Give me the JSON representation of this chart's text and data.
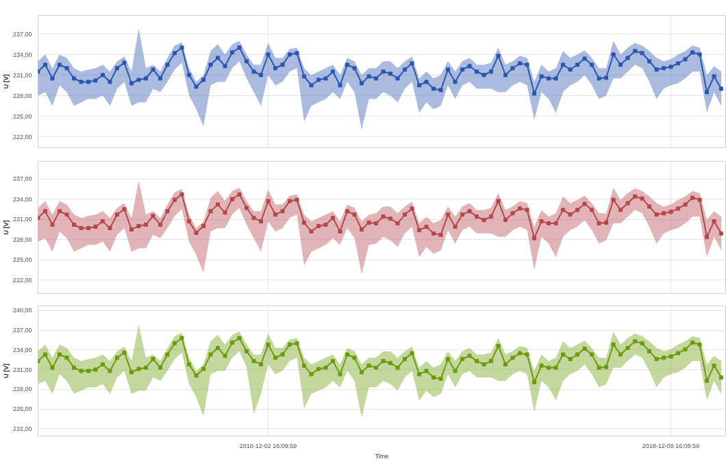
{
  "chart_data": [
    {
      "type": "line",
      "ylabel": "U [V]",
      "tick_labels": "y",
      "grid": true,
      "marker": "square",
      "x": [
        "2018-11-28T16:10",
        "2018-11-28T19:10",
        "2018-11-28T22:10",
        "2018-11-29T01:10",
        "2018-11-29T04:10",
        "2018-11-29T07:10",
        "2018-11-29T10:10",
        "2018-11-29T13:10",
        "2018-11-29T16:10",
        "2018-11-29T19:10",
        "2018-11-29T22:10",
        "2018-11-30T01:10",
        "2018-11-30T04:10",
        "2018-11-30T07:10",
        "2018-11-30T10:10",
        "2018-11-30T13:10",
        "2018-11-30T16:10",
        "2018-11-30T19:10",
        "2018-11-30T22:10",
        "2018-12-01T01:10",
        "2018-12-01T04:10",
        "2018-12-01T07:10",
        "2018-12-01T10:10",
        "2018-12-01T13:10",
        "2018-12-01T16:10",
        "2018-12-01T19:10",
        "2018-12-01T22:10",
        "2018-12-02T01:10",
        "2018-12-02T04:10",
        "2018-12-02T07:10",
        "2018-12-02T10:10",
        "2018-12-02T13:10",
        "2018-12-02T16:10",
        "2018-12-02T19:10",
        "2018-12-02T22:10",
        "2018-12-03T01:10",
        "2018-12-03T04:10",
        "2018-12-03T07:10",
        "2018-12-03T10:10",
        "2018-12-03T13:10",
        "2018-12-03T16:10",
        "2018-12-03T19:10",
        "2018-12-03T22:10",
        "2018-12-04T01:10",
        "2018-12-04T04:10",
        "2018-12-04T07:10",
        "2018-12-04T10:10",
        "2018-12-04T13:10",
        "2018-12-04T16:10",
        "2018-12-04T19:10",
        "2018-12-04T22:10",
        "2018-12-05T01:10",
        "2018-12-05T04:10",
        "2018-12-05T07:10",
        "2018-12-05T10:10",
        "2018-12-05T13:10",
        "2018-12-05T16:10",
        "2018-12-05T19:10",
        "2018-12-05T22:10",
        "2018-12-06T01:10",
        "2018-12-06T04:10",
        "2018-12-06T07:10",
        "2018-12-06T10:10",
        "2018-12-06T13:10",
        "2018-12-06T16:10",
        "2018-12-06T19:10",
        "2018-12-06T22:10",
        "2018-12-07T01:10",
        "2018-12-07T04:10",
        "2018-12-07T07:10",
        "2018-12-07T10:10",
        "2018-12-07T13:10",
        "2018-12-07T16:10",
        "2018-12-07T19:10",
        "2018-12-07T22:10",
        "2018-12-08T01:10",
        "2018-12-08T04:10",
        "2018-12-08T07:10",
        "2018-12-08T10:10",
        "2018-12-08T13:10",
        "2018-12-08T16:10",
        "2018-12-08T19:10",
        "2018-12-08T22:10",
        "2018-12-09T01:10",
        "2018-12-09T04:10",
        "2018-12-09T07:10",
        "2018-12-09T10:10",
        "2018-12-09T13:10",
        "2018-12-09T16:10",
        "2018-12-09T19:10",
        "2018-12-09T22:10",
        "2018-12-10T01:10",
        "2018-12-10T04:10",
        "2018-12-10T07:10",
        "2018-12-10T10:10",
        "2018-12-10T13:10"
      ],
      "xlim": [
        "2018-11-28T16:10",
        "2018-12-10T15:00"
      ],
      "xticks": [
        {
          "value": "2018-12-02T16:09:59",
          "label": null
        },
        {
          "value": "2018-12-09T16:09:59",
          "label": null
        }
      ],
      "ylim": [
        220.4,
        239.7
      ],
      "yticks": [
        {
          "value": 222,
          "label": "222,00"
        },
        {
          "value": 225,
          "label": "225,00"
        },
        {
          "value": 228,
          "label": "228,00"
        },
        {
          "value": 231,
          "label": "231,00"
        },
        {
          "value": 234,
          "label": "234,00"
        },
        {
          "value": 237,
          "label": "237,00"
        }
      ],
      "series": [
        {
          "color": "#2a56b0",
          "values": [
            231.5,
            232.5,
            230.5,
            232.5,
            232.0,
            230.5,
            230.0,
            230.0,
            230.2,
            231.0,
            230.0,
            232.0,
            232.8,
            229.8,
            230.3,
            230.5,
            231.8,
            230.5,
            232.5,
            234.2,
            235.0,
            231.0,
            229.3,
            230.3,
            232.5,
            233.5,
            232.3,
            234.3,
            235.0,
            233.0,
            231.5,
            231.0,
            234.0,
            232.0,
            232.5,
            234.0,
            234.2,
            230.8,
            229.5,
            230.3,
            230.5,
            231.5,
            229.5,
            232.5,
            232.0,
            229.8,
            230.8,
            230.5,
            231.5,
            231.2,
            230.5,
            231.8,
            232.7,
            229.5,
            230.0,
            229.0,
            228.8,
            231.8,
            230.0,
            231.8,
            232.3,
            231.5,
            231.0,
            231.5,
            233.8,
            231.0,
            232.0,
            232.7,
            232.5,
            228.3,
            230.8,
            230.5,
            230.5,
            232.5,
            231.8,
            232.5,
            233.4,
            232.5,
            230.5,
            230.6,
            234.0,
            232.5,
            233.5,
            234.5,
            234.2,
            233.0,
            231.8,
            232.0,
            232.2,
            232.7,
            233.3,
            234.3,
            234.0,
            228.5,
            230.8,
            229.0
          ],
          "lower": [
            228.0,
            228.5,
            226.5,
            229.5,
            228.5,
            226.5,
            227.0,
            227.5,
            227.5,
            228.0,
            226.5,
            229.0,
            230.0,
            226.5,
            227.0,
            227.0,
            229.0,
            228.5,
            230.0,
            231.8,
            232.8,
            228.0,
            226.0,
            223.5,
            229.5,
            230.0,
            230.0,
            232.0,
            233.0,
            230.5,
            228.5,
            226.5,
            231.0,
            229.5,
            230.0,
            231.5,
            232.0,
            224.2,
            226.5,
            227.0,
            227.5,
            228.5,
            227.5,
            230.0,
            228.5,
            223.0,
            227.5,
            227.5,
            228.5,
            228.0,
            227.0,
            229.0,
            230.0,
            225.5,
            227.0,
            226.0,
            226.5,
            229.5,
            227.5,
            229.5,
            230.0,
            229.0,
            229.0,
            229.0,
            228.5,
            228.5,
            229.5,
            230.0,
            229.5,
            224.5,
            228.5,
            227.5,
            225.5,
            228.5,
            229.5,
            230.0,
            231.0,
            229.5,
            227.5,
            228.0,
            230.5,
            230.5,
            231.5,
            232.5,
            232.0,
            230.0,
            227.5,
            229.0,
            229.5,
            229.8,
            230.5,
            231.5,
            231.5,
            225.5,
            228.5,
            226.5
          ],
          "upper": [
            233.0,
            234.0,
            232.0,
            234.0,
            233.5,
            232.0,
            231.5,
            231.8,
            232.0,
            232.5,
            231.5,
            233.0,
            233.7,
            231.5,
            237.8,
            232.0,
            232.5,
            231.5,
            233.5,
            235.3,
            235.8,
            232.0,
            230.0,
            231.0,
            234.5,
            235.5,
            234.0,
            235.5,
            236.0,
            234.0,
            232.5,
            232.5,
            235.7,
            233.5,
            233.5,
            234.8,
            235.0,
            232.0,
            231.0,
            231.5,
            232.0,
            232.5,
            231.0,
            233.5,
            233.0,
            231.0,
            232.0,
            232.0,
            233.0,
            233.0,
            232.0,
            233.0,
            233.7,
            230.5,
            231.5,
            230.5,
            231.0,
            233.0,
            231.5,
            233.0,
            233.5,
            232.5,
            232.5,
            232.8,
            235.0,
            232.5,
            233.0,
            233.8,
            233.5,
            230.0,
            232.5,
            231.5,
            232.0,
            234.5,
            233.5,
            234.0,
            234.6,
            233.5,
            232.0,
            232.0,
            236.0,
            234.0,
            235.0,
            235.7,
            235.3,
            234.5,
            233.5,
            233.0,
            233.3,
            234.0,
            234.5,
            235.3,
            235.0,
            231.0,
            232.3,
            231.5
          ]
        }
      ]
    },
    {
      "type": "line",
      "ylabel": "U [V]",
      "tick_labels": "y",
      "grid": true,
      "marker": "square",
      "x": [
        "2018-11-28T16:10",
        "2018-11-28T19:10",
        "2018-11-28T22:10",
        "2018-11-29T01:10",
        "2018-11-29T04:10",
        "2018-11-29T07:10",
        "2018-11-29T10:10",
        "2018-11-29T13:10",
        "2018-11-29T16:10",
        "2018-11-29T19:10",
        "2018-11-29T22:10",
        "2018-11-30T01:10",
        "2018-11-30T04:10",
        "2018-11-30T07:10",
        "2018-11-30T10:10",
        "2018-11-30T13:10",
        "2018-11-30T16:10",
        "2018-11-30T19:10",
        "2018-11-30T22:10",
        "2018-12-01T01:10",
        "2018-12-01T04:10",
        "2018-12-01T07:10",
        "2018-12-01T10:10",
        "2018-12-01T13:10",
        "2018-12-01T16:10",
        "2018-12-01T19:10",
        "2018-12-01T22:10",
        "2018-12-02T01:10",
        "2018-12-02T04:10",
        "2018-12-02T07:10",
        "2018-12-02T10:10",
        "2018-12-02T13:10",
        "2018-12-02T16:10",
        "2018-12-02T19:10",
        "2018-12-02T22:10",
        "2018-12-03T01:10",
        "2018-12-03T04:10",
        "2018-12-03T07:10",
        "2018-12-03T10:10",
        "2018-12-03T13:10",
        "2018-12-03T16:10",
        "2018-12-03T19:10",
        "2018-12-03T22:10",
        "2018-12-04T01:10",
        "2018-12-04T04:10",
        "2018-12-04T07:10",
        "2018-12-04T10:10",
        "2018-12-04T13:10",
        "2018-12-04T16:10",
        "2018-12-04T19:10",
        "2018-12-04T22:10",
        "2018-12-05T01:10",
        "2018-12-05T04:10",
        "2018-12-05T07:10",
        "2018-12-05T10:10",
        "2018-12-05T13:10",
        "2018-12-05T16:10",
        "2018-12-05T19:10",
        "2018-12-05T22:10",
        "2018-12-06T01:10",
        "2018-12-06T04:10",
        "2018-12-06T07:10",
        "2018-12-06T10:10",
        "2018-12-06T13:10",
        "2018-12-06T16:10",
        "2018-12-06T19:10",
        "2018-12-06T22:10",
        "2018-12-07T01:10",
        "2018-12-07T04:10",
        "2018-12-07T07:10",
        "2018-12-07T10:10",
        "2018-12-07T13:10",
        "2018-12-07T16:10",
        "2018-12-07T19:10",
        "2018-12-07T22:10",
        "2018-12-08T01:10",
        "2018-12-08T04:10",
        "2018-12-08T07:10",
        "2018-12-08T10:10",
        "2018-12-08T13:10",
        "2018-12-08T16:10",
        "2018-12-08T19:10",
        "2018-12-08T22:10",
        "2018-12-09T01:10",
        "2018-12-09T04:10",
        "2018-12-09T07:10",
        "2018-12-09T10:10",
        "2018-12-09T13:10",
        "2018-12-09T16:10",
        "2018-12-09T19:10",
        "2018-12-09T22:10",
        "2018-12-10T01:10",
        "2018-12-10T04:10",
        "2018-12-10T07:10",
        "2018-12-10T10:10",
        "2018-12-10T13:10"
      ],
      "xlim": [
        "2018-11-28T16:10",
        "2018-12-10T15:00"
      ],
      "xticks": [
        {
          "value": "2018-12-02T16:09:59",
          "label": null
        },
        {
          "value": "2018-12-09T16:09:59",
          "label": null
        }
      ],
      "ylim": [
        220.0,
        239.6
      ],
      "yticks": [
        {
          "value": 222,
          "label": "222,00"
        },
        {
          "value": 225,
          "label": "225,00"
        },
        {
          "value": 228,
          "label": "228,00"
        },
        {
          "value": 231,
          "label": "231,00"
        },
        {
          "value": 234,
          "label": "234,00"
        },
        {
          "value": 237,
          "label": "237,00"
        }
      ],
      "series": [
        {
          "color": "#b5474a",
          "values": [
            231.2,
            232.2,
            230.2,
            232.2,
            231.7,
            230.2,
            229.7,
            229.7,
            229.9,
            230.7,
            229.7,
            231.7,
            232.5,
            229.5,
            230.0,
            230.2,
            231.5,
            230.2,
            232.2,
            233.9,
            234.7,
            230.7,
            229.0,
            230.0,
            232.2,
            233.2,
            232.0,
            234.0,
            234.7,
            232.7,
            231.2,
            230.7,
            233.7,
            231.7,
            232.2,
            233.7,
            233.9,
            230.5,
            229.2,
            230.0,
            230.2,
            231.2,
            229.2,
            232.2,
            231.7,
            229.5,
            230.5,
            230.4,
            231.4,
            231.1,
            230.4,
            231.7,
            232.6,
            229.4,
            229.9,
            228.9,
            228.7,
            231.7,
            229.9,
            231.7,
            232.2,
            231.4,
            230.9,
            231.4,
            233.7,
            230.9,
            231.9,
            232.6,
            232.4,
            228.2,
            230.7,
            230.4,
            230.4,
            232.4,
            231.7,
            232.4,
            233.3,
            232.4,
            230.4,
            230.5,
            233.9,
            232.4,
            233.4,
            234.4,
            234.1,
            232.9,
            231.7,
            231.9,
            232.1,
            232.6,
            233.2,
            234.2,
            233.9,
            228.4,
            230.7,
            228.9
          ],
          "lower": [
            227.7,
            228.2,
            226.2,
            229.2,
            228.2,
            226.2,
            226.7,
            227.2,
            227.2,
            227.7,
            226.2,
            228.7,
            229.7,
            226.2,
            226.7,
            226.7,
            228.7,
            228.2,
            229.7,
            231.5,
            232.5,
            227.7,
            225.7,
            223.1,
            229.2,
            229.7,
            229.7,
            231.7,
            232.7,
            230.2,
            228.2,
            226.2,
            230.7,
            229.2,
            229.7,
            231.2,
            231.7,
            224.2,
            226.2,
            226.7,
            227.2,
            228.2,
            227.2,
            229.7,
            228.2,
            222.9,
            227.2,
            227.4,
            228.4,
            227.9,
            226.9,
            228.9,
            229.9,
            225.4,
            226.9,
            225.9,
            226.4,
            229.4,
            227.4,
            229.4,
            229.9,
            228.9,
            228.9,
            228.9,
            228.4,
            228.4,
            229.4,
            229.9,
            229.4,
            223.5,
            228.4,
            227.4,
            225.4,
            228.4,
            229.4,
            229.9,
            230.9,
            229.4,
            227.4,
            227.9,
            230.4,
            230.4,
            231.4,
            232.4,
            231.9,
            229.9,
            227.4,
            228.9,
            229.4,
            229.7,
            230.4,
            231.4,
            231.4,
            225.4,
            228.4,
            226.4
          ],
          "upper": [
            232.7,
            233.7,
            231.7,
            233.7,
            233.2,
            231.7,
            231.2,
            231.5,
            231.7,
            232.2,
            231.2,
            232.7,
            233.4,
            231.2,
            236.7,
            231.7,
            232.2,
            231.2,
            233.2,
            235.0,
            235.5,
            231.7,
            229.7,
            230.7,
            234.2,
            235.2,
            233.7,
            235.2,
            235.7,
            233.7,
            232.2,
            232.2,
            235.4,
            233.2,
            233.2,
            234.5,
            234.7,
            231.7,
            230.7,
            231.2,
            231.7,
            232.2,
            230.7,
            233.2,
            232.7,
            230.7,
            231.7,
            231.9,
            232.9,
            232.9,
            231.9,
            232.9,
            233.6,
            230.4,
            231.4,
            230.4,
            230.9,
            232.9,
            231.4,
            232.9,
            233.4,
            232.4,
            232.4,
            232.7,
            234.9,
            232.4,
            232.9,
            233.7,
            233.4,
            229.9,
            232.4,
            231.4,
            231.9,
            234.4,
            233.4,
            233.9,
            234.5,
            233.4,
            231.9,
            231.9,
            235.7,
            233.9,
            234.9,
            235.6,
            235.2,
            234.4,
            233.4,
            232.9,
            233.2,
            233.9,
            234.4,
            235.2,
            234.9,
            230.9,
            232.2,
            231.4
          ]
        }
      ]
    },
    {
      "type": "line",
      "ylabel": "U [V]",
      "xlabel": "Time",
      "grid": true,
      "marker": "square",
      "x": [
        "2018-11-28T16:10",
        "2018-11-28T19:10",
        "2018-11-28T22:10",
        "2018-11-29T01:10",
        "2018-11-29T04:10",
        "2018-11-29T07:10",
        "2018-11-29T10:10",
        "2018-11-29T13:10",
        "2018-11-29T16:10",
        "2018-11-29T19:10",
        "2018-11-29T22:10",
        "2018-11-30T01:10",
        "2018-11-30T04:10",
        "2018-11-30T07:10",
        "2018-11-30T10:10",
        "2018-11-30T13:10",
        "2018-11-30T16:10",
        "2018-11-30T19:10",
        "2018-11-30T22:10",
        "2018-12-01T01:10",
        "2018-12-01T04:10",
        "2018-12-01T07:10",
        "2018-12-01T10:10",
        "2018-12-01T13:10",
        "2018-12-01T16:10",
        "2018-12-01T19:10",
        "2018-12-01T22:10",
        "2018-12-02T01:10",
        "2018-12-02T04:10",
        "2018-12-02T07:10",
        "2018-12-02T10:10",
        "2018-12-02T13:10",
        "2018-12-02T16:10",
        "2018-12-02T19:10",
        "2018-12-02T22:10",
        "2018-12-03T01:10",
        "2018-12-03T04:10",
        "2018-12-03T07:10",
        "2018-12-03T10:10",
        "2018-12-03T13:10",
        "2018-12-03T16:10",
        "2018-12-03T19:10",
        "2018-12-03T22:10",
        "2018-12-04T01:10",
        "2018-12-04T04:10",
        "2018-12-04T07:10",
        "2018-12-04T10:10",
        "2018-12-04T13:10",
        "2018-12-04T16:10",
        "2018-12-04T19:10",
        "2018-12-04T22:10",
        "2018-12-05T01:10",
        "2018-12-05T04:10",
        "2018-12-05T07:10",
        "2018-12-05T10:10",
        "2018-12-05T13:10",
        "2018-12-05T16:10",
        "2018-12-05T19:10",
        "2018-12-05T22:10",
        "2018-12-06T01:10",
        "2018-12-06T04:10",
        "2018-12-06T07:10",
        "2018-12-06T10:10",
        "2018-12-06T13:10",
        "2018-12-06T16:10",
        "2018-12-06T19:10",
        "2018-12-06T22:10",
        "2018-12-07T01:10",
        "2018-12-07T04:10",
        "2018-12-07T07:10",
        "2018-12-07T10:10",
        "2018-12-07T13:10",
        "2018-12-07T16:10",
        "2018-12-07T19:10",
        "2018-12-07T22:10",
        "2018-12-08T01:10",
        "2018-12-08T04:10",
        "2018-12-08T07:10",
        "2018-12-08T10:10",
        "2018-12-08T13:10",
        "2018-12-08T16:10",
        "2018-12-08T19:10",
        "2018-12-08T22:10",
        "2018-12-09T01:10",
        "2018-12-09T04:10",
        "2018-12-09T07:10",
        "2018-12-09T10:10",
        "2018-12-09T13:10",
        "2018-12-09T16:10",
        "2018-12-09T19:10",
        "2018-12-09T22:10",
        "2018-12-10T01:10",
        "2018-12-10T04:10",
        "2018-12-10T07:10",
        "2018-12-10T10:10",
        "2018-12-10T13:10"
      ],
      "xlim": [
        "2018-11-28T16:10",
        "2018-12-10T15:00"
      ],
      "xticks": [
        {
          "value": "2018-12-02T16:09:59",
          "label": "2018-12-02 16:09:59"
        },
        {
          "value": "2018-12-09T16:09:59",
          "label": "2018-12-09 16:09:59"
        }
      ],
      "ylim": [
        220.9,
        240.7
      ],
      "yticks": [
        {
          "value": 222,
          "label": "222,00"
        },
        {
          "value": 225,
          "label": "225,00"
        },
        {
          "value": 228,
          "label": "228,00"
        },
        {
          "value": 231,
          "label": "231,00"
        },
        {
          "value": 234,
          "label": "234,00"
        },
        {
          "value": 237,
          "label": "237,00"
        },
        {
          "value": 240,
          "label": "240,00"
        }
      ],
      "series": [
        {
          "color": "#6b9b0a",
          "values": [
            232.3,
            233.3,
            231.3,
            233.3,
            232.8,
            231.3,
            230.8,
            230.8,
            231.0,
            231.8,
            230.8,
            232.8,
            233.6,
            230.6,
            231.1,
            231.3,
            232.6,
            231.3,
            233.3,
            235.0,
            235.8,
            231.8,
            230.1,
            231.1,
            233.3,
            234.3,
            233.1,
            235.1,
            235.8,
            233.8,
            232.3,
            231.8,
            234.8,
            232.8,
            233.3,
            234.8,
            235.0,
            231.6,
            230.3,
            231.1,
            231.3,
            232.3,
            230.3,
            233.3,
            232.8,
            230.6,
            231.6,
            231.3,
            232.3,
            232.0,
            231.3,
            232.6,
            233.5,
            230.3,
            230.8,
            229.8,
            229.6,
            232.6,
            230.8,
            232.6,
            233.1,
            232.3,
            231.8,
            232.3,
            234.6,
            231.8,
            232.8,
            233.5,
            233.3,
            229.1,
            231.6,
            231.3,
            231.3,
            233.3,
            232.6,
            233.3,
            234.2,
            233.3,
            231.3,
            231.4,
            234.8,
            233.3,
            234.3,
            235.3,
            235.0,
            233.8,
            232.6,
            232.8,
            233.0,
            233.5,
            234.1,
            235.1,
            234.8,
            229.3,
            231.6,
            229.8
          ],
          "lower": [
            228.8,
            229.3,
            227.3,
            230.3,
            229.3,
            227.3,
            227.8,
            228.3,
            228.3,
            228.8,
            227.3,
            229.8,
            230.8,
            227.3,
            227.8,
            227.8,
            229.8,
            229.3,
            230.8,
            232.6,
            233.6,
            228.8,
            226.8,
            223.9,
            230.3,
            230.8,
            230.8,
            232.8,
            233.8,
            231.3,
            224.3,
            227.3,
            231.8,
            230.3,
            230.8,
            232.3,
            232.8,
            225.1,
            227.3,
            227.8,
            228.3,
            229.3,
            228.3,
            230.8,
            229.3,
            223.7,
            228.3,
            228.3,
            229.3,
            228.8,
            227.8,
            229.8,
            230.8,
            226.3,
            227.8,
            226.8,
            227.3,
            230.3,
            228.3,
            230.3,
            230.8,
            229.8,
            229.8,
            229.8,
            229.3,
            229.3,
            230.3,
            230.8,
            230.3,
            224.6,
            229.3,
            228.3,
            226.3,
            229.3,
            230.3,
            230.8,
            231.8,
            230.3,
            228.3,
            228.8,
            231.3,
            231.3,
            232.3,
            233.3,
            232.8,
            230.8,
            228.3,
            229.8,
            230.3,
            230.6,
            231.3,
            232.3,
            232.3,
            226.3,
            229.3,
            227.3
          ],
          "upper": [
            233.8,
            234.8,
            232.8,
            234.8,
            234.3,
            232.8,
            232.3,
            232.6,
            232.8,
            233.3,
            232.3,
            233.8,
            234.5,
            232.3,
            237.8,
            232.8,
            233.3,
            232.3,
            234.3,
            236.1,
            236.6,
            232.8,
            230.8,
            231.8,
            235.3,
            236.3,
            234.8,
            236.3,
            236.8,
            234.8,
            233.3,
            233.3,
            236.5,
            234.3,
            234.3,
            235.6,
            235.8,
            232.8,
            231.8,
            232.3,
            232.8,
            233.3,
            231.8,
            234.3,
            233.8,
            231.8,
            232.8,
            232.8,
            233.8,
            233.8,
            232.8,
            233.8,
            234.5,
            231.3,
            232.3,
            231.3,
            231.8,
            233.8,
            232.3,
            233.8,
            234.3,
            233.3,
            233.3,
            233.6,
            235.8,
            233.3,
            233.8,
            234.6,
            234.3,
            230.8,
            233.3,
            232.3,
            232.8,
            235.3,
            234.3,
            234.8,
            235.4,
            234.3,
            232.8,
            232.8,
            236.8,
            234.8,
            235.8,
            236.5,
            236.1,
            235.3,
            234.3,
            233.8,
            234.1,
            234.8,
            235.3,
            236.1,
            235.8,
            231.8,
            233.1,
            232.3
          ]
        }
      ]
    }
  ]
}
